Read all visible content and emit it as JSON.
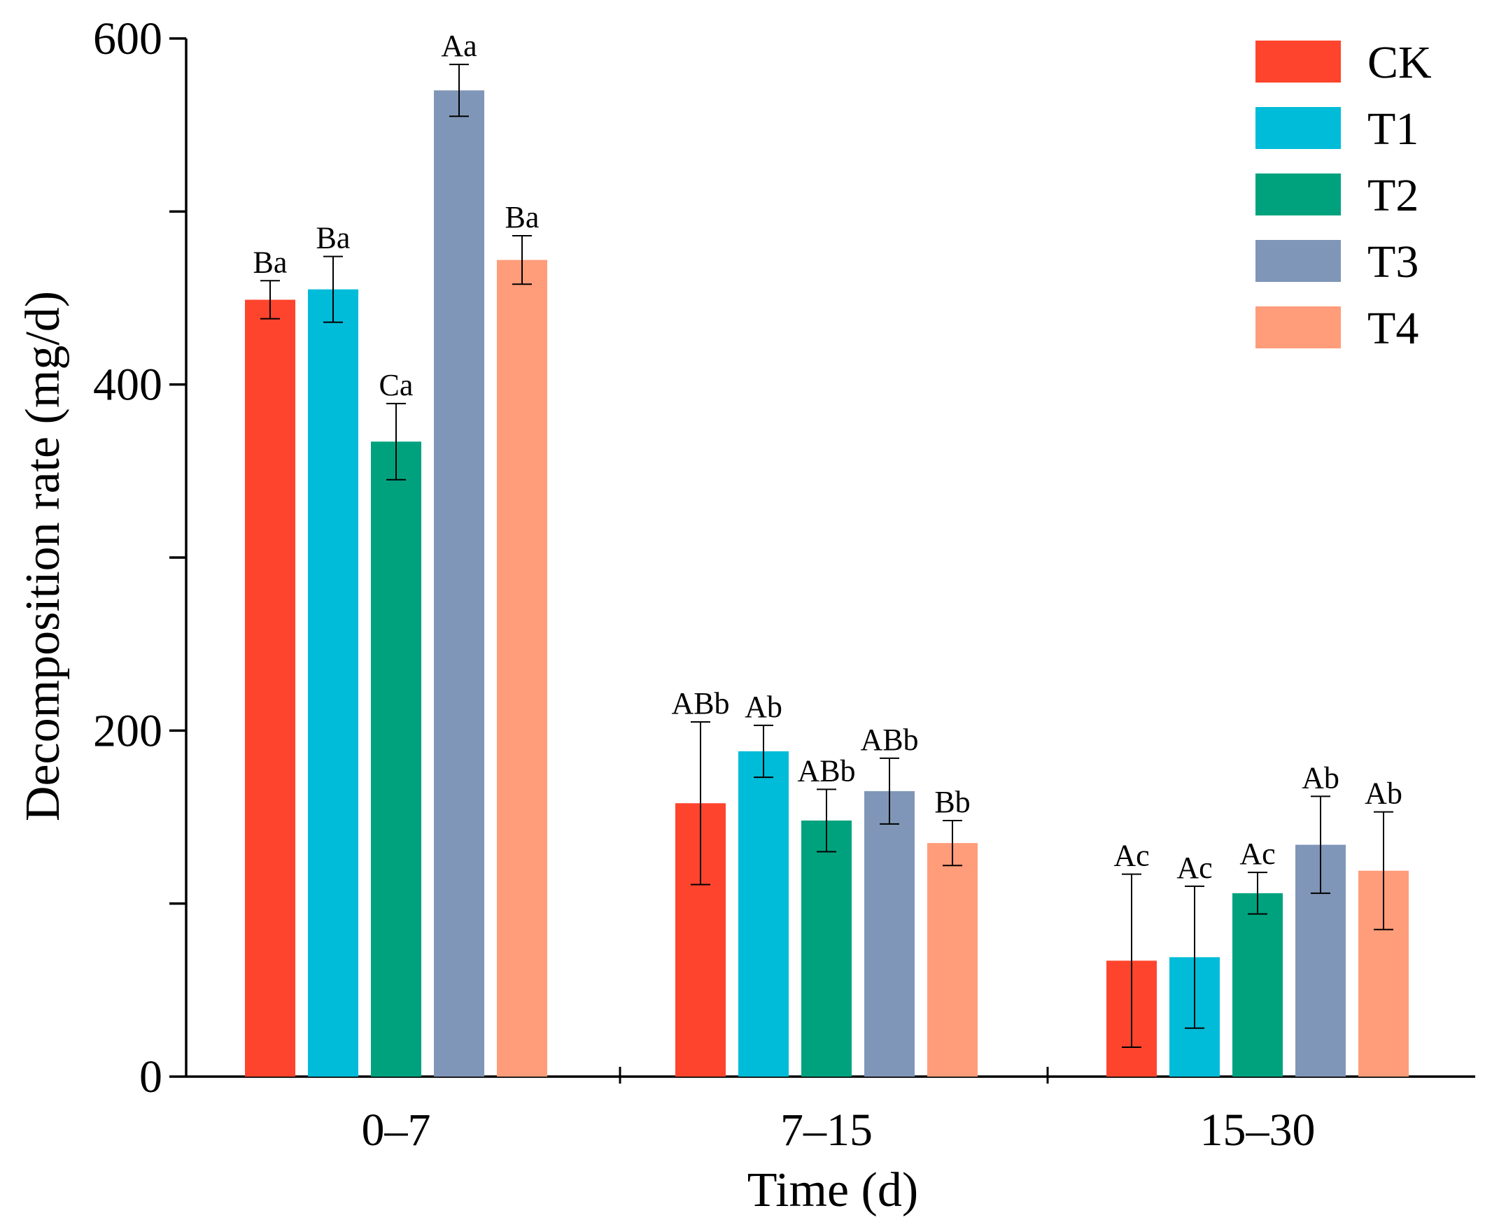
{
  "chart_data": {
    "type": "bar",
    "title": "",
    "xlabel": "Time (d)",
    "ylabel": "Decomposition rate (mg/d)",
    "ylim": [
      0,
      600
    ],
    "yticks": [
      0,
      200,
      400,
      600
    ],
    "categories": [
      "0–7",
      "7–15",
      "15–30"
    ],
    "series": [
      {
        "name": "CK",
        "color": "#FF442D",
        "values": [
          449,
          158,
          67
        ],
        "errors": [
          11,
          47,
          50
        ],
        "labels": [
          "Ba",
          "ABb",
          "Ac"
        ]
      },
      {
        "name": "T1",
        "color": "#00BCD8",
        "values": [
          455,
          188,
          69
        ],
        "errors": [
          19,
          15,
          41
        ],
        "labels": [
          "Ba",
          "Ab",
          "Ac"
        ]
      },
      {
        "name": "T2",
        "color": "#00A27E",
        "values": [
          367,
          148,
          106
        ],
        "errors": [
          22,
          18,
          12
        ],
        "labels": [
          "Ca",
          "ABb",
          "Ac"
        ]
      },
      {
        "name": "T3",
        "color": "#8096B8",
        "values": [
          570,
          165,
          134
        ],
        "errors": [
          15,
          19,
          28
        ],
        "labels": [
          "Aa",
          "ABb",
          "Ab"
        ]
      },
      {
        "name": "T4",
        "color": "#FF9C7A",
        "values": [
          472,
          135,
          119
        ],
        "errors": [
          14,
          13,
          34
        ],
        "labels": [
          "Ba",
          "Bb",
          "Ab"
        ]
      }
    ],
    "legend": "top-right"
  }
}
